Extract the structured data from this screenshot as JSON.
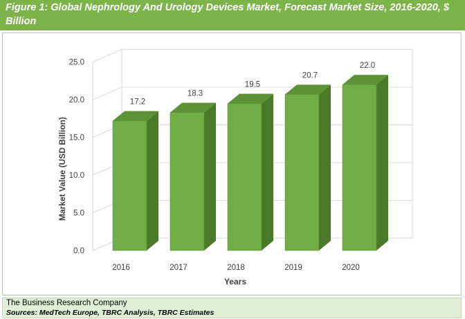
{
  "header": {
    "title": "Figure 1: Global Nephrology And Urology Devices Market, Forecast Market Size, 2016-2020, $ Billion"
  },
  "footer": {
    "company": "The Business Research Company",
    "sources": "Sources: MedTech Europe, TBRC Analysis, TBRC Estimates"
  },
  "colors": {
    "header_bg": "#7db44a",
    "bar_front": "#70ad47",
    "bar_side": "#4a7a28",
    "bar_top": "#5d9237",
    "footer_bg": "#e1eed6"
  },
  "chart_data": {
    "type": "bar",
    "style": "3d-column",
    "categories": [
      "2016",
      "2017",
      "2018",
      "2019",
      "2020"
    ],
    "values": [
      17.2,
      18.3,
      19.5,
      20.7,
      22.0
    ],
    "value_labels": [
      "17.2",
      "18.3",
      "19.5",
      "20.7",
      "22.0"
    ],
    "yticks": [
      "0.0",
      "5.0",
      "10.0",
      "15.0",
      "20.0",
      "25.0"
    ],
    "ylim": [
      0,
      25
    ],
    "xlabel": "Years",
    "ylabel": "Market Value (USD Billion)",
    "grid": true,
    "legend": "none"
  }
}
